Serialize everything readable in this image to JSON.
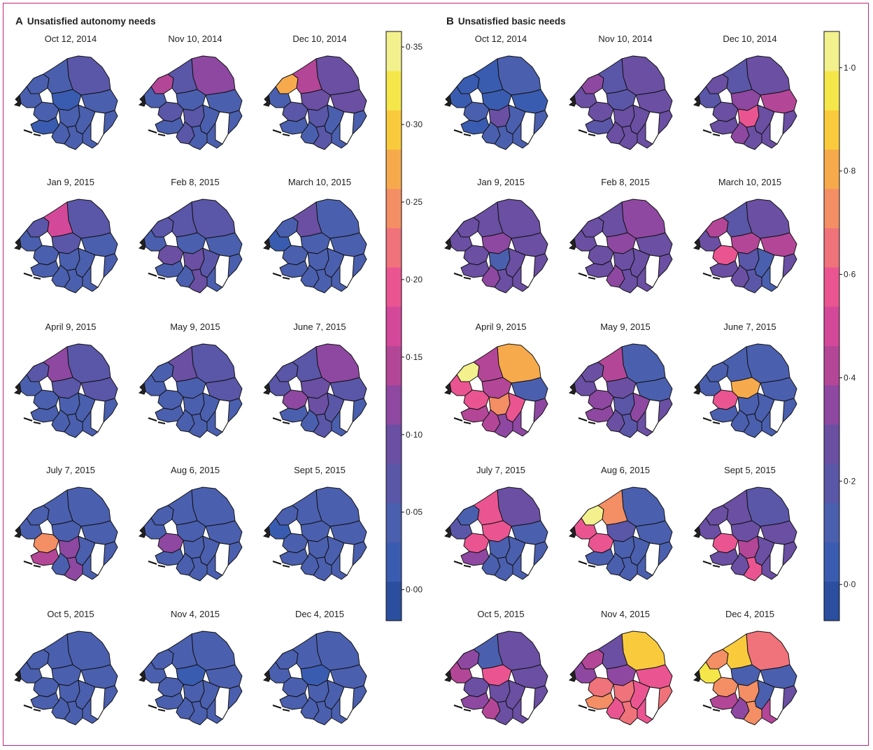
{
  "chart_data": [
    {
      "type": "choropleth-map-grid",
      "panel_letter": "A",
      "title": "Unsatisfied autonomy needs",
      "colorbar": {
        "min": -0.02,
        "max": 0.36,
        "ticks": [
          0.0,
          0.05,
          0.1,
          0.15,
          0.2,
          0.25,
          0.3,
          0.35
        ],
        "tick_labels": [
          "0·00",
          "0·05",
          "0·10",
          "0·15",
          "0·20",
          "0·25",
          "0·30",
          "0·35"
        ]
      },
      "maps": [
        {
          "date": "Oct 12, 2014",
          "values": [
            0.06,
            0.05,
            0.04,
            0.03,
            0.05,
            0.05,
            0.04,
            0.04,
            0.04,
            0.04,
            0.03,
            0.05,
            0.04,
            0.04
          ]
        },
        {
          "date": "Nov 10, 2014",
          "values": [
            0.11,
            0.14,
            0.08,
            0.05,
            0.05,
            0.05,
            0.06,
            0.07,
            0.05,
            0.05,
            0.04,
            0.06,
            0.05,
            0.05
          ]
        },
        {
          "date": "Dec 10, 2014",
          "values": [
            0.1,
            0.26,
            0.14,
            0.1,
            0.09,
            0.05,
            0.08,
            0.08,
            0.05,
            0.05,
            0.04,
            0.05,
            0.06,
            0.05
          ]
        },
        {
          "date": "Jan 9, 2015",
          "values": [
            0.08,
            0.08,
            0.16,
            0.06,
            0.04,
            0.04,
            0.05,
            0.05,
            0.04,
            0.04,
            0.04,
            0.04,
            0.04,
            0.04
          ]
        },
        {
          "date": "Feb 8, 2015",
          "values": [
            0.06,
            0.06,
            0.06,
            0.05,
            0.05,
            0.04,
            0.09,
            0.09,
            0.06,
            0.05,
            0.04,
            0.05,
            0.09,
            0.05
          ]
        },
        {
          "date": "March 10, 2015",
          "values": [
            0.05,
            0.04,
            0.09,
            0.05,
            0.05,
            0.03,
            0.05,
            0.05,
            0.05,
            0.04,
            0.04,
            0.04,
            0.05,
            0.04
          ]
        },
        {
          "date": "April 9, 2015",
          "values": [
            0.07,
            0.06,
            0.13,
            0.07,
            0.08,
            0.05,
            0.05,
            0.05,
            0.05,
            0.05,
            0.04,
            0.04,
            0.05,
            0.04
          ]
        },
        {
          "date": "May 9, 2015",
          "values": [
            0.06,
            0.05,
            0.1,
            0.05,
            0.06,
            0.04,
            0.05,
            0.05,
            0.05,
            0.05,
            0.04,
            0.04,
            0.05,
            0.04
          ]
        },
        {
          "date": "June 7, 2015",
          "values": [
            0.13,
            0.08,
            0.06,
            0.09,
            0.07,
            0.06,
            0.11,
            0.09,
            0.06,
            0.05,
            0.05,
            0.05,
            0.06,
            0.05
          ]
        },
        {
          "date": "July 7, 2015",
          "values": [
            0.05,
            0.04,
            0.05,
            0.05,
            0.05,
            0.04,
            0.25,
            0.13,
            0.05,
            0.05,
            0.15,
            0.05,
            0.12,
            0.05
          ]
        },
        {
          "date": "Aug 6, 2015",
          "values": [
            0.05,
            0.04,
            0.05,
            0.04,
            0.05,
            0.04,
            0.13,
            0.05,
            0.05,
            0.05,
            0.04,
            0.04,
            0.05,
            0.04
          ]
        },
        {
          "date": "Sept 5, 2015",
          "values": [
            0.05,
            0.05,
            0.04,
            0.04,
            0.04,
            0.03,
            0.04,
            0.04,
            0.05,
            0.04,
            0.04,
            0.04,
            0.04,
            0.04
          ]
        },
        {
          "date": "Oct 5, 2015",
          "values": [
            0.05,
            0.05,
            0.04,
            0.04,
            0.05,
            0.04,
            0.05,
            0.04,
            0.05,
            0.04,
            0.04,
            0.04,
            0.04,
            0.04
          ]
        },
        {
          "date": "Nov 4, 2015",
          "values": [
            0.05,
            0.05,
            0.05,
            0.03,
            0.04,
            0.04,
            0.04,
            0.05,
            0.04,
            0.04,
            0.04,
            0.04,
            0.04,
            0.04
          ]
        },
        {
          "date": "Dec 4, 2015",
          "values": [
            0.05,
            0.05,
            0.04,
            0.03,
            0.04,
            0.04,
            0.04,
            0.05,
            0.04,
            0.04,
            0.04,
            0.04,
            0.04,
            0.04
          ]
        }
      ]
    },
    {
      "type": "choropleth-map-grid",
      "panel_letter": "B",
      "title": "Unsatisfied basic needs",
      "colorbar": {
        "min": -0.07,
        "max": 1.07,
        "ticks": [
          0.0,
          0.2,
          0.4,
          0.6,
          0.8,
          1.0
        ],
        "tick_labels": [
          "0·0",
          "0·2",
          "0·4",
          "0·6",
          "0·8",
          "1·0"
        ]
      },
      "maps": [
        {
          "date": "Oct 12, 2014",
          "values": [
            0.1,
            0.05,
            0.05,
            0.05,
            0.05,
            0.05,
            0.1,
            0.25,
            0.15,
            0.1,
            0.05,
            0.15,
            0.1,
            0.1
          ]
        },
        {
          "date": "Nov 10, 2014",
          "values": [
            0.3,
            0.35,
            0.2,
            0.2,
            0.3,
            0.3,
            0.3,
            0.3,
            0.25,
            0.3,
            0.2,
            0.3,
            0.3,
            0.25
          ]
        },
        {
          "date": "Dec 10, 2014",
          "values": [
            0.25,
            0.3,
            0.2,
            0.35,
            0.4,
            0.2,
            0.3,
            0.6,
            0.3,
            0.3,
            0.25,
            0.35,
            0.3,
            0.3
          ]
        },
        {
          "date": "Jan 9, 2015",
          "values": [
            0.3,
            0.3,
            0.3,
            0.35,
            0.3,
            0.3,
            0.3,
            0.1,
            0.3,
            0.3,
            0.3,
            0.35,
            0.3,
            0.3
          ]
        },
        {
          "date": "Feb 8, 2015",
          "values": [
            0.35,
            0.3,
            0.3,
            0.35,
            0.3,
            0.3,
            0.3,
            0.3,
            0.3,
            0.3,
            0.3,
            0.35,
            0.3,
            0.3
          ]
        },
        {
          "date": "March 10, 2015",
          "values": [
            0.3,
            0.45,
            0.2,
            0.4,
            0.4,
            0.3,
            0.55,
            0.2,
            0.15,
            0.3,
            0.3,
            0.3,
            0.2,
            0.1
          ]
        },
        {
          "date": "April 9, 2015",
          "values": [
            0.8,
            1.0,
            0.45,
            0.4,
            0.1,
            0.55,
            0.55,
            0.7,
            0.6,
            0.35,
            0.4,
            0.4,
            0.35,
            0.35
          ]
        },
        {
          "date": "May 9, 2015",
          "values": [
            0.1,
            0.3,
            0.45,
            0.3,
            0.1,
            0.3,
            0.35,
            0.2,
            0.35,
            0.3,
            0.35,
            0.3,
            0.2,
            0.3
          ]
        },
        {
          "date": "June 7, 2015",
          "values": [
            0.1,
            0.15,
            0.1,
            0.8,
            0.15,
            0.1,
            0.55,
            0.1,
            0.1,
            0.1,
            0.1,
            0.15,
            0.1,
            0.1
          ]
        },
        {
          "date": "July 7, 2015",
          "values": [
            0.3,
            0.15,
            0.6,
            0.55,
            0.1,
            0.2,
            0.55,
            0.15,
            0.1,
            0.15,
            0.35,
            0.1,
            0.15,
            0.15
          ]
        },
        {
          "date": "Aug 6, 2015",
          "values": [
            0.1,
            1.0,
            0.7,
            0.2,
            0.1,
            0.55,
            0.55,
            0.1,
            0.15,
            0.1,
            0.15,
            0.15,
            0.1,
            0.1
          ]
        },
        {
          "date": "Sept 5, 2015",
          "values": [
            0.2,
            0.3,
            0.3,
            0.3,
            0.3,
            0.25,
            0.55,
            0.45,
            0.25,
            0.3,
            0.3,
            0.3,
            0.55,
            0.3
          ]
        },
        {
          "date": "Oct 5, 2015",
          "values": [
            0.25,
            0.35,
            0.1,
            0.55,
            0.3,
            0.4,
            0.3,
            0.3,
            0.3,
            0.3,
            0.35,
            0.4,
            0.3,
            0.3
          ]
        },
        {
          "date": "Nov 4, 2015",
          "values": [
            0.9,
            0.4,
            0.3,
            0.35,
            0.55,
            0.35,
            0.65,
            0.65,
            0.55,
            0.65,
            0.7,
            0.55,
            0.65,
            0.6
          ]
        },
        {
          "date": "Dec 4, 2015",
          "values": [
            0.65,
            0.75,
            0.9,
            0.1,
            0.1,
            0.95,
            0.7,
            0.75,
            0.1,
            0.3,
            0.4,
            0.35,
            0.7,
            0.4
          ]
        }
      ]
    }
  ],
  "colormap": [
    "#2c4e9e",
    "#3a5cb0",
    "#4a5fae",
    "#5a56a8",
    "#6a4fa3",
    "#8e48a1",
    "#b44697",
    "#d4489a",
    "#ea5591",
    "#f0727a",
    "#f48e64",
    "#f7aa4c",
    "#f9cb3c",
    "#f5e74a",
    "#f3f08e"
  ]
}
